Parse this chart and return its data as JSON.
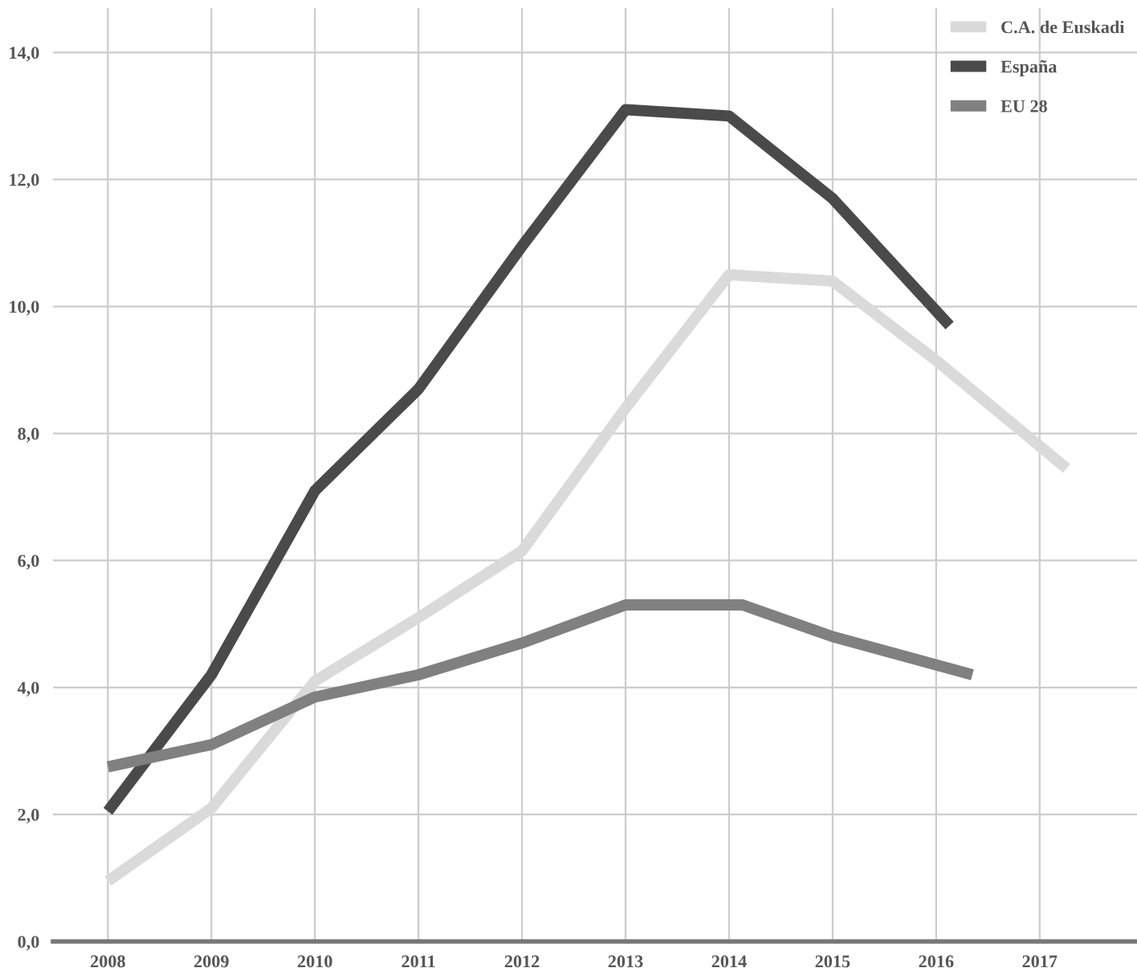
{
  "chart_data": {
    "type": "line",
    "xlim": [
      2007.47,
      2017.94
    ],
    "ylim": [
      0,
      14.7
    ],
    "xticks": [
      2008,
      2009,
      2010,
      2011,
      2012,
      2013,
      2014,
      2015,
      2016,
      2017
    ],
    "yticks": [
      {
        "value": 0,
        "label": "0,0"
      },
      {
        "value": 2,
        "label": "2,0"
      },
      {
        "value": 4,
        "label": "4,0"
      },
      {
        "value": 6,
        "label": "6,0"
      },
      {
        "value": 8,
        "label": "8,0"
      },
      {
        "value": 10,
        "label": "10,0"
      },
      {
        "value": 12,
        "label": "12,0"
      },
      {
        "value": 14,
        "label": "14,0"
      }
    ],
    "grid": true,
    "legend": "top right",
    "marker": "none",
    "line_style": "solid",
    "series": [
      {
        "name": "C.A. de Euskadi",
        "color": "#dadada",
        "x": [
          2008,
          2009,
          2010,
          2011,
          2012,
          2013,
          2014,
          2015,
          2016,
          2017.26
        ],
        "values": [
          0.95,
          2.1,
          4.1,
          5.1,
          6.15,
          8.4,
          10.5,
          10.4,
          9.15,
          7.45
        ]
      },
      {
        "name": "España",
        "color": "#4a4a4a",
        "x": [
          2008,
          2009,
          2010,
          2011,
          2012,
          2013,
          2014,
          2015,
          2016.13
        ],
        "values": [
          2.05,
          4.2,
          7.1,
          8.7,
          10.95,
          13.1,
          13.0,
          11.7,
          9.7
        ]
      },
      {
        "name": "EU 28",
        "color": "#808080",
        "x": [
          2008,
          2009,
          2010,
          2011,
          2012,
          2013,
          2014.13,
          2015,
          2016.35
        ],
        "values": [
          2.75,
          3.1,
          3.85,
          4.2,
          4.7,
          5.3,
          5.3,
          4.8,
          4.2
        ]
      }
    ]
  }
}
